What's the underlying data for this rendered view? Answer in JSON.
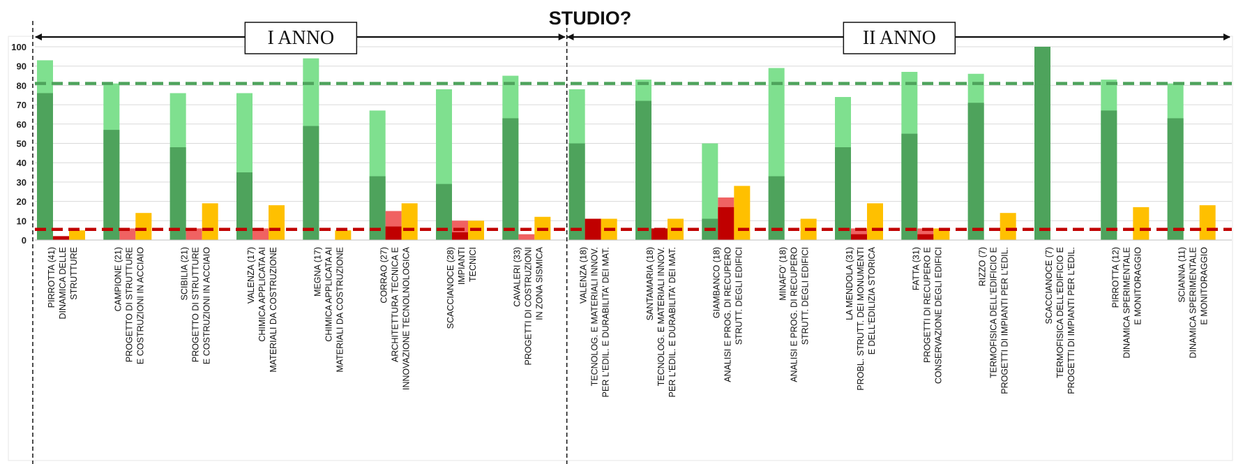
{
  "chart_data": {
    "type": "bar",
    "title": "STUDIO?",
    "ylim": [
      0,
      100
    ],
    "yticks": [
      0,
      10,
      20,
      30,
      40,
      50,
      60,
      70,
      80,
      90,
      100
    ],
    "grid": true,
    "group_labels": [
      "I ANNO",
      "II ANNO"
    ],
    "categories": [
      [
        "PIRROTTA (41)",
        "DINAMICA DELLE",
        "STRUTTURE"
      ],
      [
        "CAMPIONE (21)",
        "PROGETTO DI STRUTTURE",
        "E COSTRUZIONI IN ACCIAIO"
      ],
      [
        "SCIBILIA (21)",
        "PROGETTO DI STRUTTURE",
        "E COSTRUZIONI IN ACCIAIO"
      ],
      [
        "VALENZA (17)",
        "CHIMICA APPLICATA AI",
        "MATERIALI DA COSTRUZIONE"
      ],
      [
        "MEGNA (17)",
        "CHIMICA APPLICATA AI",
        "MATERIALI DA COSTRUZIONE"
      ],
      [
        "CORRAO (27)",
        "ARCHITETTURA TECNICA E",
        "INNOVAZIONE TECNOLNOLOGICA"
      ],
      [
        "SCACCIANOCE (28)",
        "IMPIANTI",
        "TECNICI"
      ],
      [
        "CAVALERI (33)",
        "PROGETTI DI COSTRUZIONI",
        "IN ZONA SISMICA"
      ],
      [
        "VALENZA (18)",
        "TECNOLOG. E MATERIALI INNOV.",
        "PER L'EDIL. E DURABILITA' DEI MAT."
      ],
      [
        "SANTAMARIA (18)",
        "TECNOLOG. E MATERIALI INNOV.",
        "PER L'EDIL. E DURABILITA' DEI MAT."
      ],
      [
        "GIAMBANCO (18)",
        "ANALISI E PROG. DI RECUPERO",
        "STRUTT. DEGLI EDIFICI"
      ],
      [
        "MINAFO' (18)",
        "ANALISI E PROG. DI RECUPERO",
        "STRUTT. DEGLI EDIFICI"
      ],
      [
        "LA MENDOLA (31)",
        "PROBL. STRUTT. DEI MONUMENTI",
        "E DELL'EDILIZIA STORICA"
      ],
      [
        "FATTA (31)",
        "PROGETTI DI RECUPERO E",
        "CONSERVAZIONE DEGLI EDIFICI"
      ],
      [
        "RIZZO (7)",
        "TERMOFISICA DELL'EDIFICIO E",
        "PROGETTI DI IMPIANTI PER L'EDIL."
      ],
      [
        "SCACCIANOCE (7)",
        "TERMOFISICA DELL'EDIFICIO E",
        "PROGETTI DI IMPIANTI PER L'EDIL."
      ],
      [
        "PIRROTTA (12)",
        "DINAMICA SPERIMENTALE",
        "E MONITORAGGIO"
      ],
      [
        "SCIANNA (11)",
        "DINAMICA SPERIMENTALE",
        "E MONITORAGGIO"
      ]
    ],
    "group_sizes": [
      8,
      10
    ],
    "series": [
      {
        "values": [
          93,
          81,
          76,
          76,
          94,
          67,
          78,
          85,
          78,
          83,
          50,
          89,
          74,
          87,
          86,
          100,
          83,
          81
        ],
        "color": "#7fe08f"
      },
      {
        "values": [
          76,
          57,
          48,
          35,
          59,
          33,
          29,
          63,
          50,
          72,
          11,
          33,
          48,
          55,
          71,
          100,
          67,
          63
        ],
        "color": "#4ea35c"
      },
      {
        "values": [
          2,
          6,
          6,
          6,
          0,
          15,
          10,
          3,
          11,
          6,
          22,
          0,
          6,
          6,
          0,
          0,
          0,
          0
        ],
        "color": "#f06262"
      },
      {
        "values": [
          2,
          0,
          0,
          0,
          0,
          7,
          4,
          0,
          11,
          6,
          17,
          0,
          3,
          3,
          0,
          0,
          0,
          0
        ],
        "color": "#c00000"
      },
      {
        "values": [
          5,
          14,
          19,
          18,
          5,
          19,
          10,
          12,
          11,
          11,
          28,
          11,
          19,
          6,
          14,
          0,
          17,
          18
        ],
        "color": "#ffc000"
      }
    ],
    "reference_lines": [
      {
        "y": 81,
        "color": "#4ea35c"
      },
      {
        "y": 5.5,
        "color": "#c00000"
      }
    ]
  }
}
